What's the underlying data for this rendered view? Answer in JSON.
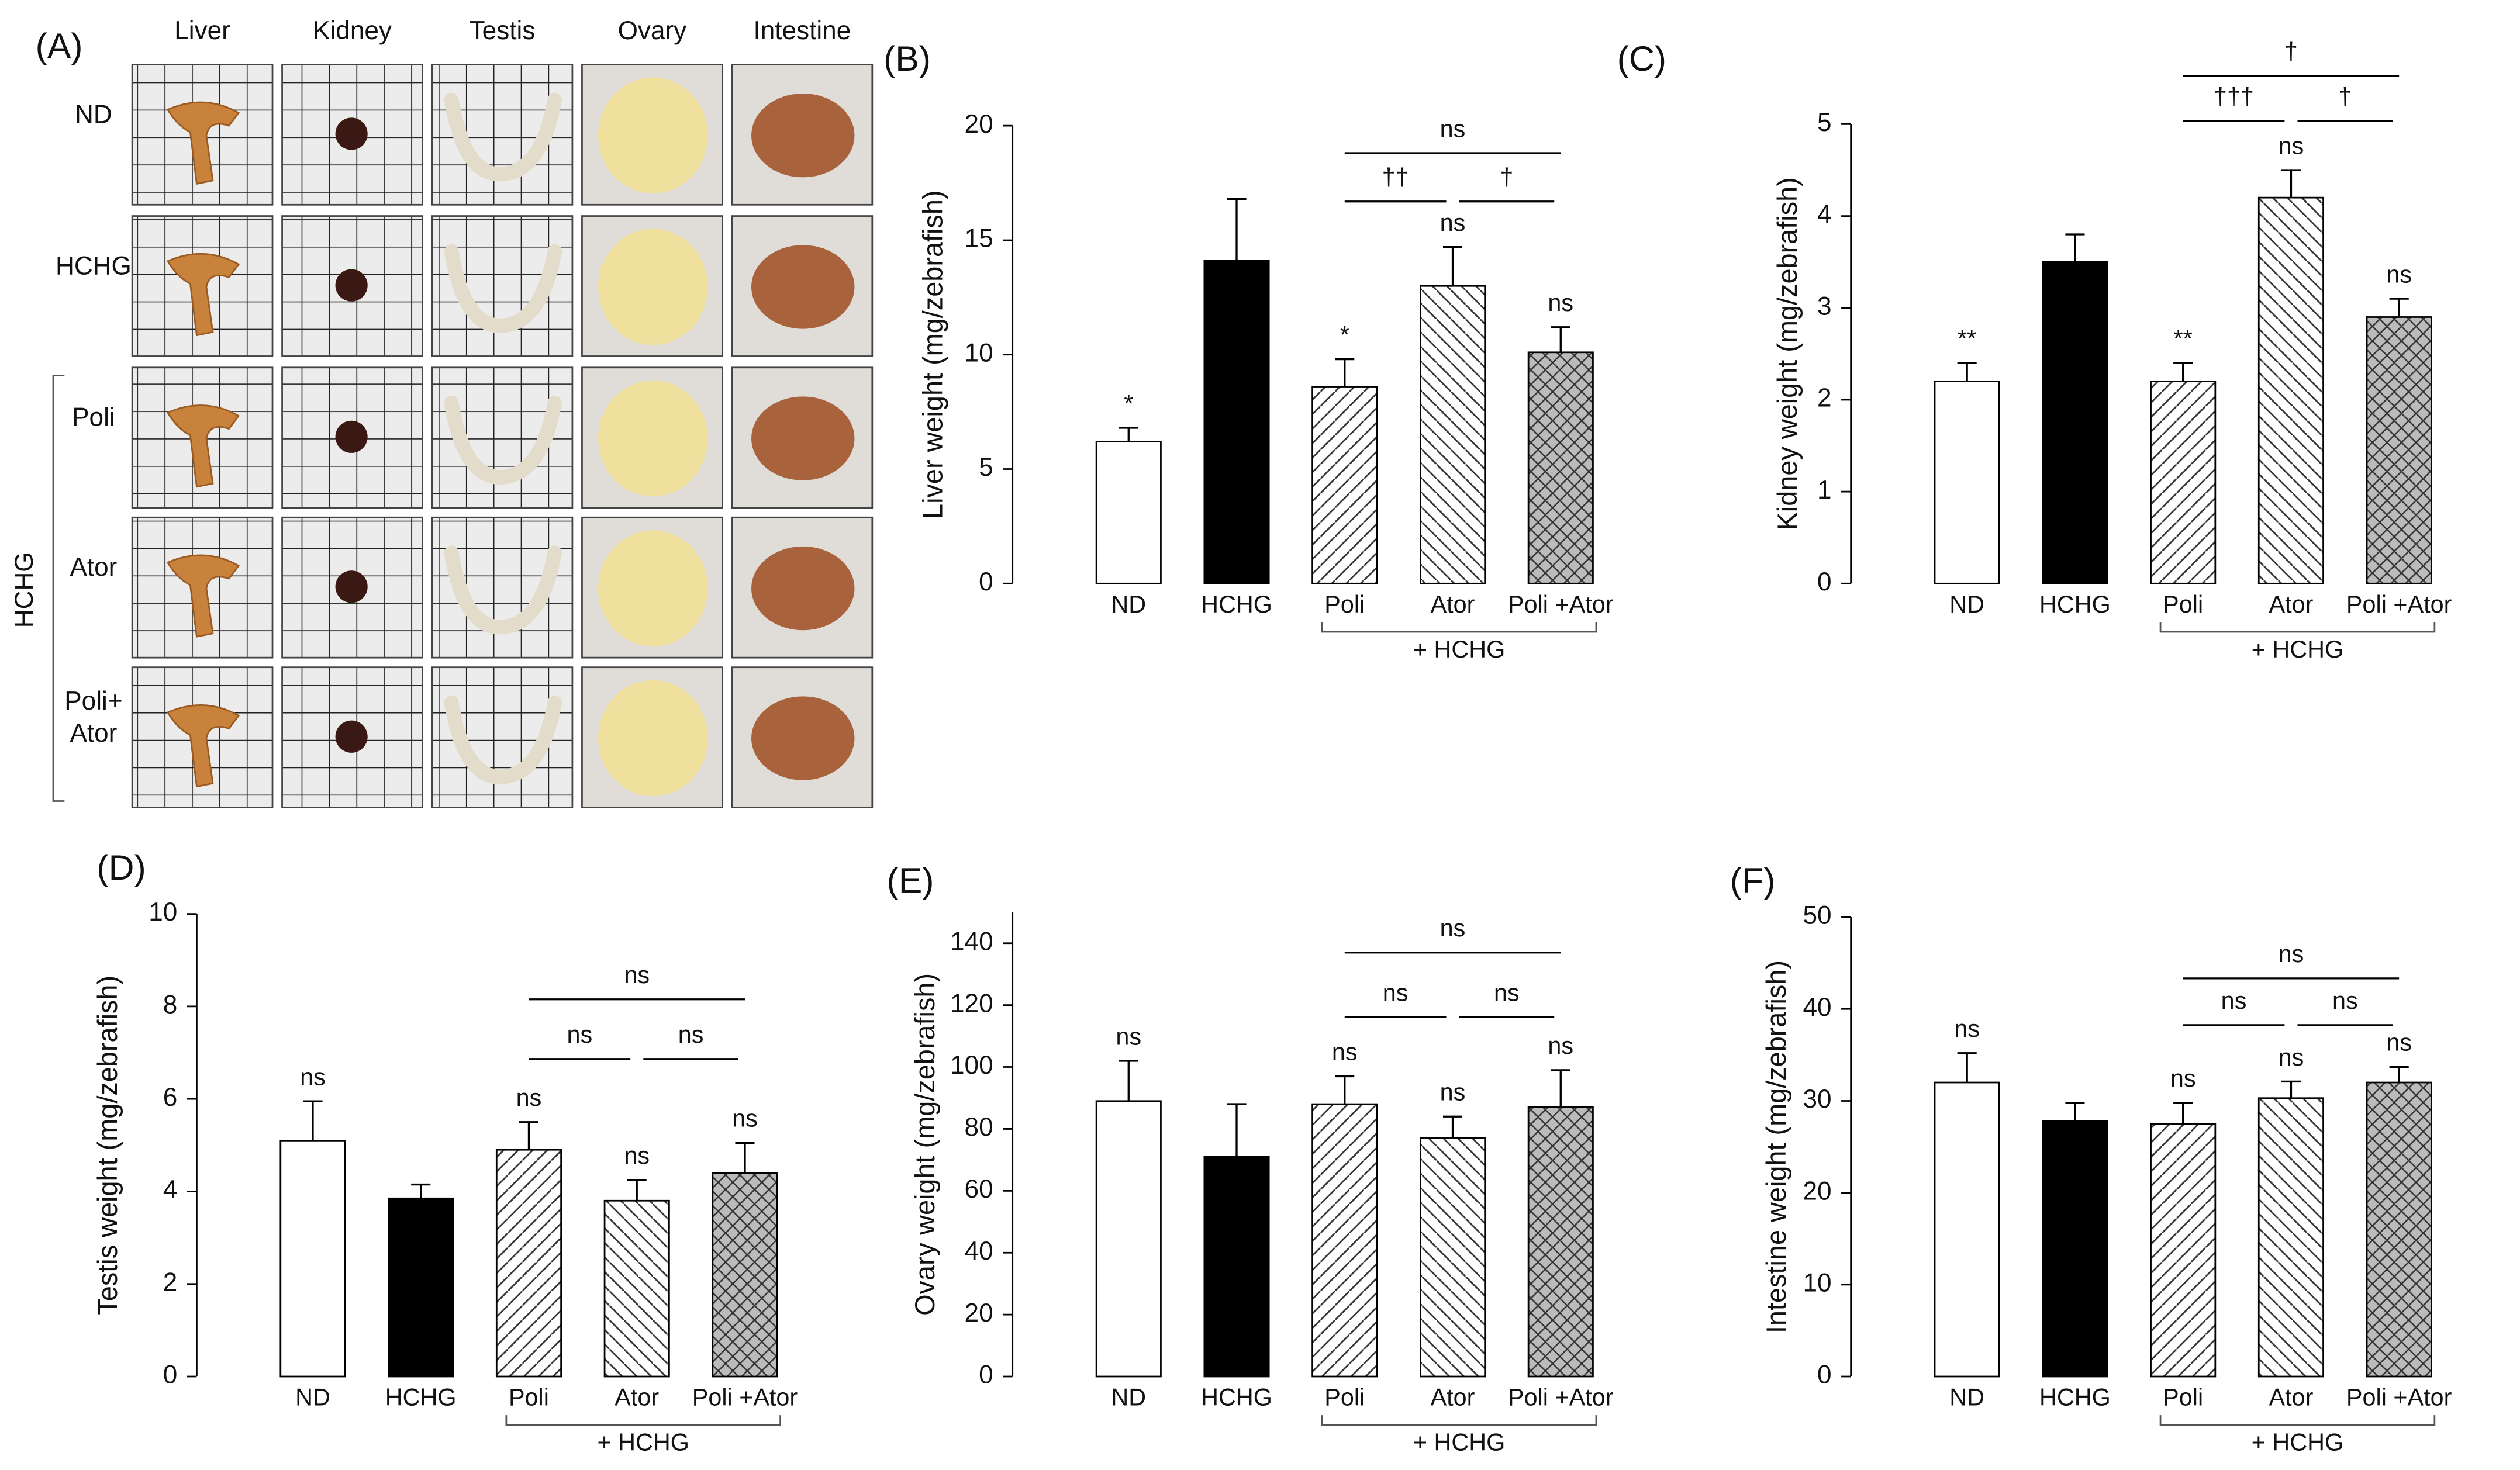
{
  "photo_panel": {
    "label": "(A)",
    "columns": [
      "Liver",
      "Kidney",
      "Testis",
      "Ovary",
      "Intestine"
    ],
    "rows": [
      [
        "ND"
      ],
      [
        "HCHG"
      ],
      [
        "Poli"
      ],
      [
        "Ator"
      ],
      [
        "Poli+",
        "Ator"
      ]
    ],
    "group_label": "HCHG"
  },
  "chart_data": [
    {
      "type": "bar",
      "panel": "(B)",
      "ylabel": "Liver weight (mg/zebrafish)",
      "categories": [
        "ND",
        "HCHG",
        "Poli",
        "Ator",
        "Poli +Ator"
      ],
      "group_label": "+ HCHG",
      "values": [
        6.2,
        14.1,
        8.6,
        13.0,
        10.1
      ],
      "errors": [
        0.6,
        2.7,
        1.2,
        1.7,
        1.1
      ],
      "annotations": [
        "*",
        null,
        "*",
        "ns",
        "ns"
      ],
      "patterns": [
        "white",
        "black",
        "diagonal-up",
        "diagonal-down",
        "crosshatch"
      ],
      "comparisons": [
        {
          "bars": [
            "Poli",
            "Ator"
          ],
          "label": "††"
        },
        {
          "bars": [
            "Ator",
            "Poli +Ator"
          ],
          "label": "†"
        },
        {
          "bars": [
            "Poli",
            "Poli +Ator"
          ],
          "label": "ns"
        }
      ],
      "ylim": [
        0,
        20
      ],
      "yticks": [
        0,
        5,
        10,
        15,
        20
      ]
    },
    {
      "type": "bar",
      "panel": "(C)",
      "ylabel": "Kidney weight (mg/zebrafish)",
      "categories": [
        "ND",
        "HCHG",
        "Poli",
        "Ator",
        "Poli +Ator"
      ],
      "group_label": "+ HCHG",
      "values": [
        2.2,
        3.5,
        2.2,
        4.2,
        2.9
      ],
      "errors": [
        0.2,
        0.3,
        0.2,
        0.3,
        0.2
      ],
      "annotations": [
        "**",
        null,
        "**",
        "ns",
        "ns"
      ],
      "patterns": [
        "white",
        "black",
        "diagonal-up",
        "diagonal-down",
        "crosshatch"
      ],
      "comparisons": [
        {
          "bars": [
            "Poli",
            "Ator"
          ],
          "label": "†††"
        },
        {
          "bars": [
            "Ator",
            "Poli +Ator"
          ],
          "label": "†"
        },
        {
          "bars": [
            "Poli",
            "Poli +Ator"
          ],
          "label": "†"
        }
      ],
      "ylim": [
        0,
        5
      ],
      "yticks": [
        0,
        1,
        2,
        3,
        4,
        5
      ]
    },
    {
      "type": "bar",
      "panel": "(D)",
      "ylabel": "Testis weight (mg/zebrafish)",
      "categories": [
        "ND",
        "HCHG",
        "Poli",
        "Ator",
        "Poli +Ator"
      ],
      "group_label": "+ HCHG",
      "values": [
        5.1,
        3.85,
        4.9,
        3.8,
        4.4
      ],
      "errors": [
        0.85,
        0.3,
        0.6,
        0.45,
        0.65
      ],
      "annotations": [
        "ns",
        null,
        "ns",
        "ns",
        "ns"
      ],
      "patterns": [
        "white",
        "black",
        "diagonal-up",
        "diagonal-down",
        "crosshatch"
      ],
      "comparisons": [
        {
          "bars": [
            "Poli",
            "Ator"
          ],
          "label": "ns"
        },
        {
          "bars": [
            "Ator",
            "Poli +Ator"
          ],
          "label": "ns"
        },
        {
          "bars": [
            "Poli",
            "Poli +Ator"
          ],
          "label": "ns"
        }
      ],
      "ylim": [
        0,
        10
      ],
      "yticks": [
        0,
        2,
        4,
        6,
        8,
        10
      ]
    },
    {
      "type": "bar",
      "panel": "(E)",
      "ylabel": "Ovary weight (mg/zebrafish)",
      "categories": [
        "ND",
        "HCHG",
        "Poli",
        "Ator",
        "Poli +Ator"
      ],
      "group_label": "+ HCHG",
      "values": [
        89,
        71,
        88,
        77,
        87
      ],
      "errors": [
        13,
        17,
        9,
        7,
        12
      ],
      "annotations": [
        "ns",
        null,
        "ns",
        "ns",
        "ns"
      ],
      "patterns": [
        "white",
        "black",
        "diagonal-up",
        "diagonal-down",
        "crosshatch"
      ],
      "comparisons": [
        {
          "bars": [
            "Poli",
            "Ator"
          ],
          "label": "ns"
        },
        {
          "bars": [
            "Ator",
            "Poli +Ator"
          ],
          "label": "ns"
        },
        {
          "bars": [
            "Poli",
            "Poli +Ator"
          ],
          "label": "ns"
        }
      ],
      "ylim": [
        0,
        150
      ],
      "yticks": [
        0,
        20,
        40,
        60,
        80,
        100,
        120,
        140
      ]
    },
    {
      "type": "bar",
      "panel": "(F)",
      "ylabel": "Intestine weight (mg/zebrafish)",
      "categories": [
        "ND",
        "HCHG",
        "Poli",
        "Ator",
        "Poli +Ator"
      ],
      "group_label": "+ HCHG",
      "values": [
        32,
        27.8,
        27.5,
        30.3,
        32
      ],
      "errors": [
        3.2,
        2,
        2.3,
        1.8,
        1.7
      ],
      "annotations": [
        "ns",
        null,
        "ns",
        "ns",
        "ns"
      ],
      "patterns": [
        "white",
        "black",
        "diagonal-up",
        "diagonal-down",
        "crosshatch"
      ],
      "comparisons": [
        {
          "bars": [
            "Poli",
            "Ator"
          ],
          "label": "ns"
        },
        {
          "bars": [
            "Ator",
            "Poli +Ator"
          ],
          "label": "ns"
        },
        {
          "bars": [
            "Poli",
            "Poli +Ator"
          ],
          "label": "ns"
        }
      ],
      "ylim": [
        0,
        50
      ],
      "yticks": [
        0,
        10,
        20,
        30,
        40,
        50
      ]
    }
  ]
}
